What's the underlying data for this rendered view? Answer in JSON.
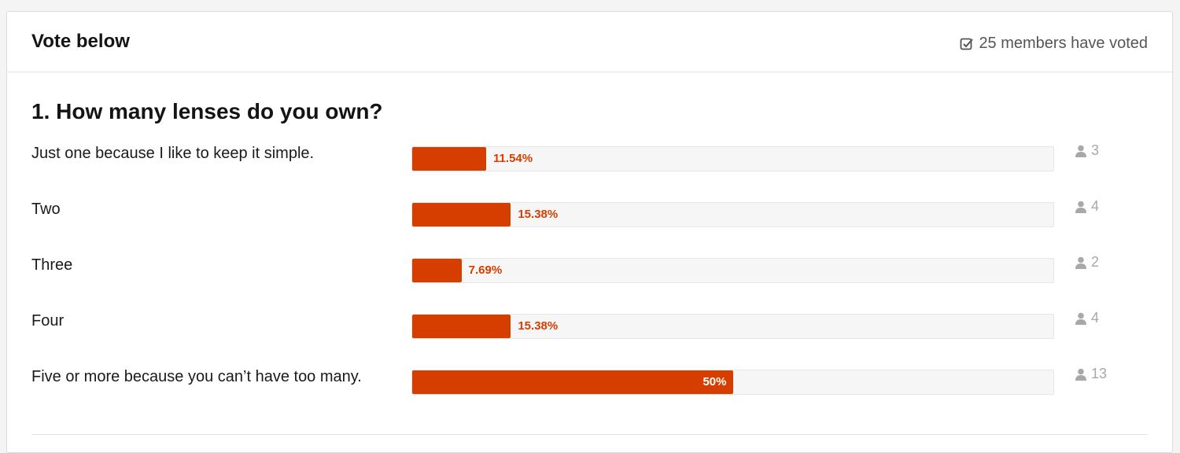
{
  "header": {
    "title": "Vote below",
    "voters": "25 members have voted"
  },
  "question": {
    "title": "1. How many lenses do you own?",
    "options": [
      {
        "label": "Just one because I like to keep it simple.",
        "percent": 11.54,
        "percent_label": "11.54%",
        "votes": 3
      },
      {
        "label": "Two",
        "percent": 15.38,
        "percent_label": "15.38%",
        "votes": 4
      },
      {
        "label": "Three",
        "percent": 7.69,
        "percent_label": "7.69%",
        "votes": 2
      },
      {
        "label": "Four",
        "percent": 15.38,
        "percent_label": "15.38%",
        "votes": 4
      },
      {
        "label": "Five or more because you can’t have too many.",
        "percent": 50,
        "percent_label": "50%",
        "votes": 13
      }
    ]
  }
}
